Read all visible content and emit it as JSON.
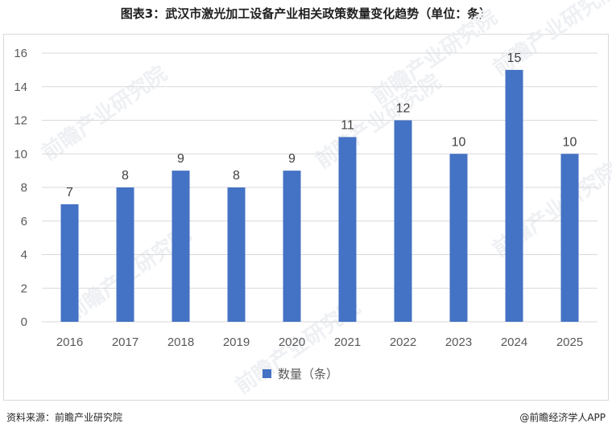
{
  "title": "图表3：武汉市激光加工设备产业相关政策数量变化趋势（单位：条）",
  "source": "资料来源：前瞻产业研究院",
  "credit": "@前瞻经济学人APP",
  "watermark": "前瞻产业研究院",
  "colors": {
    "bar": "#4472c4",
    "grid": "#d9d9d9",
    "text": "#595959",
    "watermark": "#eef0f3"
  },
  "chart_data": {
    "type": "bar",
    "categories": [
      "2016",
      "2017",
      "2018",
      "2019",
      "2020",
      "2021",
      "2022",
      "2023",
      "2024",
      "2025"
    ],
    "series": [
      {
        "name": "数量（条）",
        "values": [
          7,
          8,
          9,
          8,
          9,
          11,
          12,
          10,
          15,
          10
        ]
      }
    ],
    "ylim": [
      0,
      16
    ],
    "yticks": [
      0,
      2,
      4,
      6,
      8,
      10,
      12,
      14,
      16
    ],
    "grid": true,
    "data_labels": true,
    "legend_position": "bottom"
  }
}
